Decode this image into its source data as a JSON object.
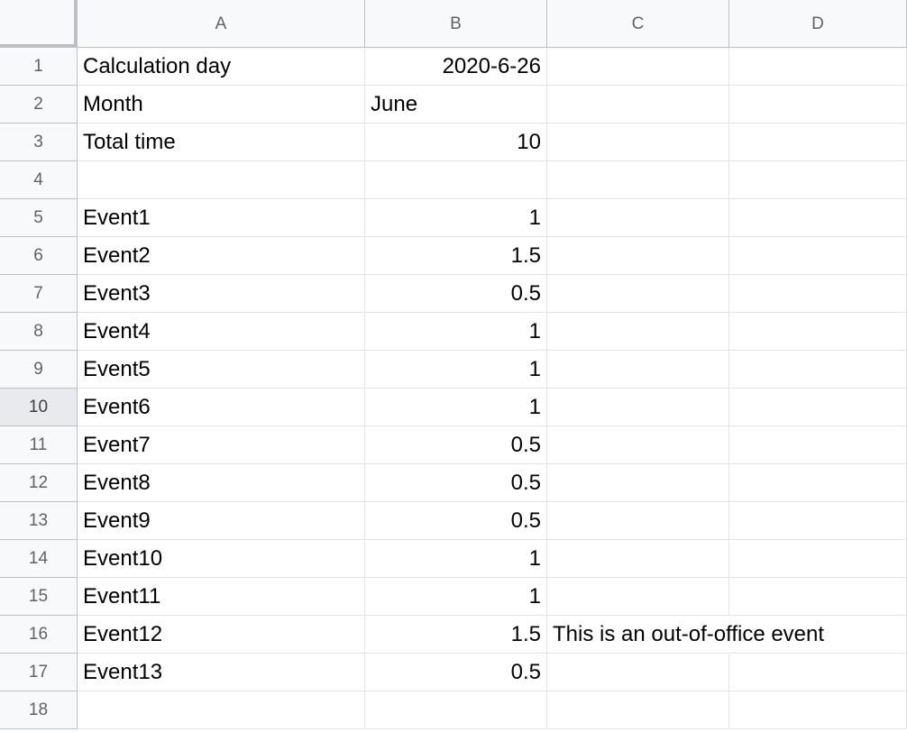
{
  "columns": [
    "A",
    "B",
    "C",
    "D"
  ],
  "rows": [
    {
      "n": "1",
      "a": "Calculation day",
      "b": "2020-6-26",
      "b_align": "right",
      "c": ""
    },
    {
      "n": "2",
      "a": "Month",
      "b": "June",
      "b_align": "left",
      "c": ""
    },
    {
      "n": "3",
      "a": "Total time",
      "b": "10",
      "b_align": "right",
      "c": ""
    },
    {
      "n": "4",
      "a": "",
      "b": "",
      "b_align": "right",
      "c": ""
    },
    {
      "n": "5",
      "a": "Event1",
      "b": "1",
      "b_align": "right",
      "c": ""
    },
    {
      "n": "6",
      "a": "Event2",
      "b": "1.5",
      "b_align": "right",
      "c": ""
    },
    {
      "n": "7",
      "a": "Event3",
      "b": "0.5",
      "b_align": "right",
      "c": ""
    },
    {
      "n": "8",
      "a": "Event4",
      "b": "1",
      "b_align": "right",
      "c": ""
    },
    {
      "n": "9",
      "a": "Event5",
      "b": "1",
      "b_align": "right",
      "c": ""
    },
    {
      "n": "10",
      "a": "Event6",
      "b": "1",
      "b_align": "right",
      "c": ""
    },
    {
      "n": "11",
      "a": "Event7",
      "b": "0.5",
      "b_align": "right",
      "c": ""
    },
    {
      "n": "12",
      "a": "Event8",
      "b": "0.5",
      "b_align": "right",
      "c": ""
    },
    {
      "n": "13",
      "a": "Event9",
      "b": "0.5",
      "b_align": "right",
      "c": ""
    },
    {
      "n": "14",
      "a": "Event10",
      "b": "1",
      "b_align": "right",
      "c": ""
    },
    {
      "n": "15",
      "a": "Event11",
      "b": "1",
      "b_align": "right",
      "c": ""
    },
    {
      "n": "16",
      "a": "Event12",
      "b": "1.5",
      "b_align": "right",
      "c": "This is an out-of-office event"
    },
    {
      "n": "17",
      "a": "Event13",
      "b": "0.5",
      "b_align": "right",
      "c": ""
    },
    {
      "n": "18",
      "a": "",
      "b": "",
      "b_align": "right",
      "c": ""
    }
  ],
  "selected_row": "10",
  "colors": {
    "header_bg": "#f8f9fa",
    "selected_header_bg": "#e8eaed",
    "gridline": "#e2e3e3"
  }
}
